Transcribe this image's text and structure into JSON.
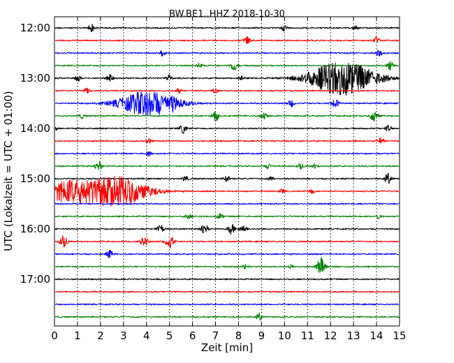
{
  "chart_data": {
    "type": "line",
    "title": "BW.BE1..HHZ 2018-10-30",
    "xlabel": "Zeit  [min]",
    "ylabel": "UTC (Lokalzeit = UTC + 01:00)",
    "xlim": [
      0,
      15
    ],
    "x_ticks": [
      "0",
      "1",
      "2",
      "3",
      "4",
      "5",
      "6",
      "7",
      "8",
      "9",
      "10",
      "11",
      "12",
      "13",
      "14",
      "15"
    ],
    "y_tick_labels": [
      "12:00",
      "13:00",
      "14:00",
      "15:00",
      "16:00",
      "17:00"
    ],
    "grid": "vertical dotted at each minute",
    "row_colors": [
      "#000000",
      "#ff0000",
      "#0000ff",
      "#008000"
    ],
    "traces": [
      {
        "label": "12:00",
        "events": [
          [
            1.6,
            0.35
          ],
          [
            10.0,
            0.25
          ],
          [
            13.1,
            0.2
          ]
        ]
      },
      {
        "label": "12:15",
        "events": [
          [
            8.4,
            0.35
          ],
          [
            14.0,
            0.3
          ]
        ]
      },
      {
        "label": "12:30",
        "events": [
          [
            4.7,
            0.25
          ],
          [
            14.1,
            0.3
          ]
        ]
      },
      {
        "label": "12:45",
        "events": [
          [
            7.8,
            0.45
          ],
          [
            6.3,
            0.2
          ],
          [
            14.6,
            0.35
          ]
        ]
      },
      {
        "label": "13:00",
        "events": [
          [
            12.5,
            1.5
          ],
          [
            1.0,
            0.3
          ],
          [
            2.4,
            0.3
          ],
          [
            5.0,
            0.25
          ],
          [
            8.1,
            0.2
          ]
        ]
      },
      {
        "label": "13:15",
        "events": [
          [
            1.4,
            0.25
          ],
          [
            5.4,
            0.2
          ],
          [
            7.0,
            0.2
          ]
        ]
      },
      {
        "label": "13:30",
        "events": [
          [
            4.1,
            1.1
          ],
          [
            5.1,
            0.25
          ],
          [
            10.3,
            0.3
          ],
          [
            12.2,
            0.4
          ]
        ]
      },
      {
        "label": "13:45",
        "events": [
          [
            7.0,
            0.45
          ],
          [
            9.1,
            0.35
          ],
          [
            13.9,
            0.5
          ],
          [
            1.2,
            0.2
          ]
        ]
      },
      {
        "label": "14:00",
        "events": [
          [
            5.6,
            0.4
          ],
          [
            14.5,
            0.3
          ],
          [
            0.0,
            0.2
          ]
        ]
      },
      {
        "label": "14:15",
        "events": [
          [
            14.2,
            0.25
          ],
          [
            4.1,
            0.2
          ]
        ]
      },
      {
        "label": "14:30",
        "events": [
          [
            4.1,
            0.2
          ]
        ]
      },
      {
        "label": "14:45",
        "events": [
          [
            1.9,
            0.45
          ],
          [
            9.3,
            0.25
          ],
          [
            10.7,
            0.25
          ],
          [
            11.3,
            0.2
          ]
        ]
      },
      {
        "label": "15:00",
        "events": [
          [
            14.5,
            0.45
          ],
          [
            5.7,
            0.25
          ],
          [
            7.5,
            0.25
          ],
          [
            9.4,
            0.2
          ]
        ]
      },
      {
        "label": "15:15",
        "events": [
          [
            2.7,
            1.3
          ],
          [
            0.6,
            0.9
          ],
          [
            9.9,
            0.2
          ],
          [
            11.2,
            0.2
          ]
        ]
      },
      {
        "label": "15:30",
        "events": []
      },
      {
        "label": "15:45",
        "events": [
          [
            5.8,
            0.25
          ],
          [
            7.2,
            0.25
          ],
          [
            14.1,
            0.2
          ]
        ]
      },
      {
        "label": "16:00",
        "events": [
          [
            4.6,
            0.35
          ],
          [
            6.5,
            0.5
          ],
          [
            7.7,
            0.45
          ],
          [
            8.2,
            0.35
          ]
        ]
      },
      {
        "label": "16:15",
        "events": [
          [
            0.4,
            0.5
          ],
          [
            3.9,
            0.45
          ],
          [
            5.0,
            0.6
          ]
        ]
      },
      {
        "label": "16:30",
        "events": [
          [
            2.4,
            0.35
          ]
        ]
      },
      {
        "label": "16:45",
        "events": [
          [
            11.6,
            0.75
          ],
          [
            8.3,
            0.2
          ],
          [
            10.3,
            0.2
          ]
        ]
      },
      {
        "label": "17:00",
        "events": []
      },
      {
        "label": "17:15",
        "events": []
      },
      {
        "label": "17:30",
        "events": []
      },
      {
        "label": "17:45",
        "events": [
          [
            8.9,
            0.3
          ]
        ]
      }
    ]
  }
}
